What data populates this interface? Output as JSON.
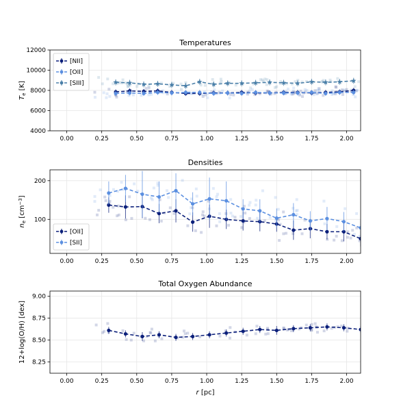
{
  "chart_data": [
    {
      "type": "line",
      "title": "Temperatures",
      "xlabel": "",
      "ylabel": "T_e [K]",
      "ylabel_main": "T",
      "ylabel_sub": "e",
      "ylabel_rest": " [K]",
      "xlim": [
        -0.12,
        2.1
      ],
      "ylim": [
        4000,
        12000
      ],
      "xticks": [
        0,
        0.25,
        0.5,
        0.75,
        1.0,
        1.25,
        1.5,
        1.75,
        2.0
      ],
      "xtick_labels": [
        "0.00",
        "0.25",
        "0.50",
        "0.75",
        "1.00",
        "1.25",
        "1.50",
        "1.75",
        "2.00"
      ],
      "yticks": [
        4000,
        6000,
        8000,
        10000,
        12000
      ],
      "ytick_labels": [
        "4000",
        "6000",
        "8000",
        "10000",
        "12000"
      ],
      "grid": true,
      "legend_position": "top-left",
      "x": [
        0.35,
        0.45,
        0.55,
        0.65,
        0.75,
        0.85,
        0.95,
        1.05,
        1.15,
        1.25,
        1.35,
        1.45,
        1.55,
        1.65,
        1.75,
        1.85,
        1.95,
        2.05
      ],
      "series": [
        {
          "name": "[NII]",
          "color": "#0b1f7a",
          "marker": "circle",
          "values": [
            7850,
            7950,
            7900,
            7950,
            7800,
            7700,
            7700,
            7750,
            7750,
            7800,
            7750,
            7750,
            7800,
            7800,
            7750,
            7800,
            7850,
            8000
          ],
          "errors": [
            250,
            250,
            250,
            250,
            250,
            250,
            250,
            250,
            250,
            250,
            250,
            250,
            250,
            250,
            250,
            250,
            250,
            250
          ]
        },
        {
          "name": "[OII]",
          "color": "#5b8fe0",
          "marker": "circle",
          "values": [
            7700,
            7750,
            7700,
            7800,
            7750,
            7800,
            7800,
            7700,
            7750,
            7700,
            7800,
            7750,
            7750,
            7750,
            7800,
            7700,
            7800,
            7800
          ],
          "errors": [
            250,
            250,
            250,
            250,
            250,
            250,
            250,
            250,
            250,
            250,
            250,
            250,
            250,
            250,
            250,
            250,
            250,
            250
          ]
        },
        {
          "name": "[SIII]",
          "color": "#4a7fa8",
          "marker": "star",
          "values": [
            8800,
            8750,
            8600,
            8650,
            8550,
            8450,
            8850,
            8600,
            8700,
            8700,
            8750,
            8800,
            8750,
            8700,
            8850,
            8800,
            8850,
            8950
          ],
          "errors": [
            300,
            300,
            300,
            300,
            300,
            300,
            300,
            300,
            300,
            300,
            300,
            300,
            300,
            300,
            300,
            300,
            300,
            300
          ]
        }
      ]
    },
    {
      "type": "line",
      "title": "Densities",
      "xlabel": "",
      "ylabel": "n_e [cm^-3]",
      "ylabel_main": "n",
      "ylabel_sub": "e",
      "ylabel_rest": " [cm",
      "ylabel_sup": "−3",
      "ylabel_end": "]",
      "xlim": [
        -0.12,
        2.1
      ],
      "ylim": [
        12,
        228
      ],
      "xticks": [
        0,
        0.25,
        0.5,
        0.75,
        1.0,
        1.25,
        1.5,
        1.75,
        2.0
      ],
      "xtick_labels": [
        "0.00",
        "0.25",
        "0.50",
        "0.75",
        "1.00",
        "1.25",
        "1.50",
        "1.75",
        "2.00"
      ],
      "yticks": [
        100,
        200
      ],
      "ytick_labels": [
        "100",
        "200"
      ],
      "grid": true,
      "legend_position": "bottom-left",
      "x": [
        0.3,
        0.42,
        0.54,
        0.66,
        0.78,
        0.9,
        1.02,
        1.14,
        1.26,
        1.38,
        1.5,
        1.62,
        1.74,
        1.86,
        1.98,
        2.1
      ],
      "series": [
        {
          "name": "[OII]",
          "color": "#0b1f7a",
          "marker": "circle",
          "values": [
            137,
            132,
            133,
            115,
            122,
            93,
            108,
            100,
            96,
            94,
            88,
            72,
            76,
            68,
            68,
            50
          ],
          "errors": [
            20,
            30,
            30,
            25,
            30,
            25,
            30,
            25,
            25,
            25,
            20,
            25,
            25,
            20,
            25,
            20
          ]
        },
        {
          "name": "[SII]",
          "color": "#5b8fe0",
          "marker": "circle",
          "values": [
            168,
            180,
            165,
            158,
            174,
            140,
            153,
            148,
            127,
            122,
            103,
            112,
            96,
            102,
            94,
            78
          ],
          "errors": [
            30,
            35,
            60,
            40,
            45,
            30,
            55,
            50,
            25,
            30,
            25,
            30,
            25,
            30,
            25,
            20
          ]
        }
      ]
    },
    {
      "type": "line",
      "title": "Total Oxygen Abundance",
      "xlabel": "r [pc]",
      "xlabel_main": "r",
      "xlabel_rest": " [pc]",
      "ylabel": "12+log(O/H) [dex]",
      "xlim": [
        -0.12,
        2.1
      ],
      "ylim": [
        8.12,
        9.06
      ],
      "xticks": [
        0,
        0.25,
        0.5,
        0.75,
        1.0,
        1.25,
        1.5,
        1.75,
        2.0
      ],
      "xtick_labels": [
        "0.00",
        "0.25",
        "0.50",
        "0.75",
        "1.00",
        "1.25",
        "1.50",
        "1.75",
        "2.00"
      ],
      "yticks": [
        8.25,
        8.5,
        8.75,
        9.0
      ],
      "ytick_labels": [
        "8.25",
        "8.50",
        "8.75",
        "9.00"
      ],
      "grid": true,
      "legend_position": "none",
      "x": [
        0.3,
        0.42,
        0.54,
        0.66,
        0.78,
        0.9,
        1.02,
        1.14,
        1.26,
        1.38,
        1.5,
        1.62,
        1.74,
        1.86,
        1.98,
        2.1
      ],
      "series": [
        {
          "name": "",
          "color": "#0b1f7a",
          "marker": "circle",
          "values": [
            8.61,
            8.57,
            8.54,
            8.56,
            8.53,
            8.54,
            8.56,
            8.58,
            8.6,
            8.62,
            8.61,
            8.63,
            8.64,
            8.65,
            8.64,
            8.62
          ],
          "errors": [
            0.04,
            0.04,
            0.05,
            0.04,
            0.04,
            0.04,
            0.04,
            0.04,
            0.04,
            0.04,
            0.05,
            0.04,
            0.04,
            0.04,
            0.04,
            0.04
          ]
        }
      ]
    }
  ]
}
